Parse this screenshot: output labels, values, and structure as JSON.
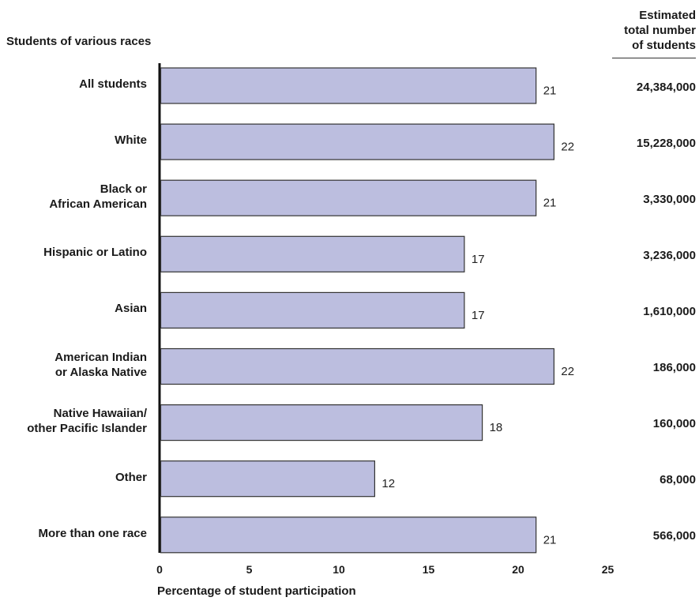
{
  "header": {
    "left": "Students of various races",
    "right_lines": [
      "Estimated",
      "total number",
      "of students"
    ]
  },
  "chart_data": {
    "type": "bar",
    "orientation": "horizontal",
    "categories": [
      "All students",
      "White",
      "Black or African American",
      "Hispanic or Latino",
      "Asian",
      "American Indian or Alaska Native",
      "Native Hawaiian/ other Pacific Islander",
      "Other",
      "More than one race"
    ],
    "category_label_lines": [
      [
        "All students"
      ],
      [
        "White"
      ],
      [
        "Black or",
        "African American"
      ],
      [
        "Hispanic or Latino"
      ],
      [
        "Asian"
      ],
      [
        "American Indian",
        "or Alaska Native"
      ],
      [
        "Native Hawaiian/",
        "other Pacific Islander"
      ],
      [
        "Other"
      ],
      [
        "More than one race"
      ]
    ],
    "values": [
      21,
      22,
      21,
      17,
      17,
      22,
      18,
      12,
      21
    ],
    "value_labels": [
      "21",
      "22",
      "21",
      "17",
      "17",
      "22",
      "18",
      "12",
      "21"
    ],
    "estimated_totals": [
      "24,384,000",
      "15,228,000",
      "3,330,000",
      "3,236,000",
      "1,610,000",
      "186,000",
      "160,000",
      "68,000",
      "566,000"
    ],
    "xlabel": "Percentage of student participation",
    "xlim": [
      0,
      25
    ],
    "xticks": [
      "0",
      "5",
      "10",
      "15",
      "20",
      "25"
    ],
    "grid": false,
    "bar_color": "#bcbedf",
    "bar_stroke": "#333333"
  }
}
